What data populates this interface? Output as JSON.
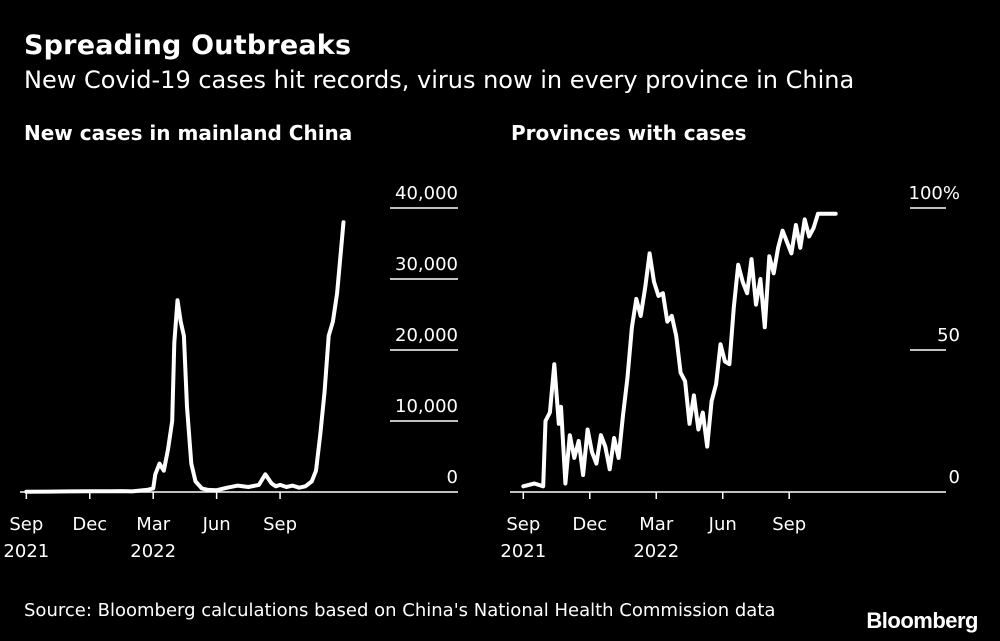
{
  "title": "Spreading Outbreaks",
  "subtitle": "New Covid-19 cases hit records, virus now in every province in China",
  "source": "Source: Bloomberg calculations based on China's National Health Commission data",
  "brand": "Bloomberg",
  "colors": {
    "background": "#000000",
    "line": "#ffffff",
    "text": "#ffffff"
  },
  "chart_data": [
    {
      "type": "line",
      "title": "New cases in mainland China",
      "xlabel": "",
      "ylabel": "",
      "x_ticks": [
        {
          "month": 0,
          "label": "Sep",
          "year": "2021"
        },
        {
          "month": 3,
          "label": "Dec",
          "year": ""
        },
        {
          "month": 6,
          "label": "Mar",
          "year": "2022"
        },
        {
          "month": 9,
          "label": "Jun",
          "year": ""
        },
        {
          "month": 12,
          "label": "Sep",
          "year": ""
        }
      ],
      "x_domain": [
        -0.3,
        17.2
      ],
      "y_ticks": [
        {
          "value": 0,
          "label": "0"
        },
        {
          "value": 10000,
          "label": "10,000"
        },
        {
          "value": 20000,
          "label": "20,000"
        },
        {
          "value": 30000,
          "label": "30,000"
        },
        {
          "value": 40000,
          "label": "40,000"
        }
      ],
      "ylim": [
        0,
        40000
      ],
      "series": [
        {
          "name": "New cases",
          "x": [
            0,
            1,
            2,
            3,
            4,
            4.5,
            5,
            5.7,
            6,
            6.1,
            6.3,
            6.5,
            6.7,
            6.9,
            7.0,
            7.15,
            7.3,
            7.45,
            7.6,
            7.8,
            8.0,
            8.3,
            8.6,
            9.0,
            9.5,
            10.0,
            10.5,
            11.0,
            11.3,
            11.6,
            11.8,
            12.0,
            12.3,
            12.6,
            12.9,
            13.2,
            13.5,
            13.7,
            13.9,
            14.1,
            14.3,
            14.5,
            14.7,
            14.85,
            15.0
          ],
          "values": [
            40,
            50,
            80,
            100,
            110,
            120,
            80,
            300,
            500,
            2500,
            4000,
            3000,
            6000,
            10000,
            21000,
            27000,
            24000,
            22000,
            12000,
            4000,
            1500,
            500,
            300,
            250,
            600,
            900,
            700,
            1000,
            2500,
            1200,
            800,
            1000,
            700,
            900,
            600,
            800,
            1500,
            3000,
            8000,
            14000,
            22000,
            24000,
            28000,
            33000,
            38000
          ]
        }
      ]
    },
    {
      "type": "line",
      "title": "Provinces with cases",
      "xlabel": "",
      "ylabel": "",
      "x_ticks": [
        {
          "month": 0,
          "label": "Sep",
          "year": "2021"
        },
        {
          "month": 3,
          "label": "Dec",
          "year": ""
        },
        {
          "month": 6,
          "label": "Mar",
          "year": "2022"
        },
        {
          "month": 9,
          "label": "Jun",
          "year": ""
        },
        {
          "month": 12,
          "label": "Sep",
          "year": ""
        }
      ],
      "x_domain": [
        -0.6,
        17.0
      ],
      "y_ticks": [
        {
          "value": 0,
          "label": "0"
        },
        {
          "value": 50,
          "label": "50"
        },
        {
          "value": 100,
          "label": "100%"
        }
      ],
      "ylim": [
        0,
        100
      ],
      "series": [
        {
          "name": "Provinces with cases (%)",
          "x": [
            0,
            0.5,
            0.9,
            1.0,
            1.2,
            1.4,
            1.6,
            1.7,
            1.9,
            2.1,
            2.3,
            2.5,
            2.7,
            2.9,
            3.1,
            3.3,
            3.5,
            3.7,
            3.9,
            4.1,
            4.3,
            4.5,
            4.7,
            4.9,
            5.1,
            5.3,
            5.5,
            5.7,
            5.9,
            6.1,
            6.3,
            6.5,
            6.7,
            6.9,
            7.1,
            7.3,
            7.5,
            7.7,
            7.9,
            8.1,
            8.3,
            8.5,
            8.7,
            8.9,
            9.1,
            9.3,
            9.5,
            9.7,
            9.9,
            10.1,
            10.3,
            10.5,
            10.7,
            10.9,
            11.1,
            11.3,
            11.5,
            11.7,
            11.9,
            12.1,
            12.3,
            12.5,
            12.7,
            12.9,
            13.1,
            13.3,
            13.5,
            13.7,
            13.9,
            14.1
          ],
          "values": [
            2,
            3,
            2,
            25,
            28,
            45,
            24,
            30,
            3,
            20,
            12,
            18,
            6,
            22,
            14,
            10,
            20,
            16,
            8,
            19,
            12,
            27,
            40,
            58,
            68,
            62,
            72,
            84,
            74,
            69,
            70,
            60,
            62,
            55,
            42,
            39,
            24,
            34,
            22,
            28,
            16,
            32,
            38,
            52,
            46,
            45,
            65,
            80,
            74,
            70,
            82,
            66,
            75,
            58,
            83,
            77,
            86,
            92,
            88,
            84,
            94,
            86,
            96,
            90,
            93,
            98,
            98,
            98,
            98,
            98
          ]
        }
      ]
    }
  ]
}
